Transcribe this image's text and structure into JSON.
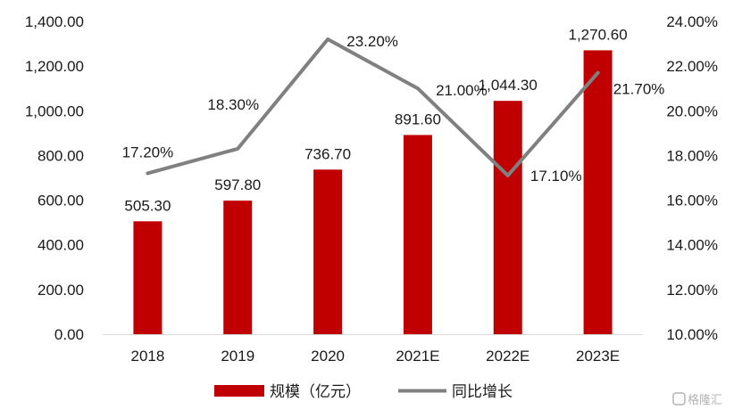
{
  "chart_data": {
    "type": "bar",
    "categories": [
      "2018",
      "2019",
      "2020",
      "2021E",
      "2022E",
      "2023E"
    ],
    "series": [
      {
        "name": "规模（亿元）",
        "kind": "bar",
        "axis": "left",
        "color": "#c00000",
        "values": [
          505.3,
          597.8,
          736.7,
          891.6,
          1044.3,
          1270.6
        ],
        "labels": [
          "505.30",
          "597.80",
          "736.70",
          "891.60",
          "1,044.30",
          "1,270.60"
        ]
      },
      {
        "name": "同比增长",
        "kind": "line",
        "axis": "right",
        "color": "#808080",
        "values": [
          17.2,
          18.3,
          23.2,
          21.0,
          17.1,
          21.7
        ],
        "labels": [
          "17.20%",
          "18.30%",
          "23.20%",
          "21.00%",
          "17.10%",
          "21.70%"
        ]
      }
    ],
    "y_left": {
      "ylim": [
        0,
        1400
      ],
      "ticks": [
        "0.00",
        "200.00",
        "400.00",
        "600.00",
        "800.00",
        "1,000.00",
        "1,200.00",
        "1,400.00"
      ]
    },
    "y_right": {
      "ylim": [
        10,
        24
      ],
      "ticks": [
        "10.00%",
        "12.00%",
        "14.00%",
        "16.00%",
        "18.00%",
        "20.00%",
        "22.00%",
        "24.00%"
      ]
    },
    "grid": false,
    "legend_position": "bottom-center"
  },
  "watermark": {
    "text": "格隆汇"
  }
}
